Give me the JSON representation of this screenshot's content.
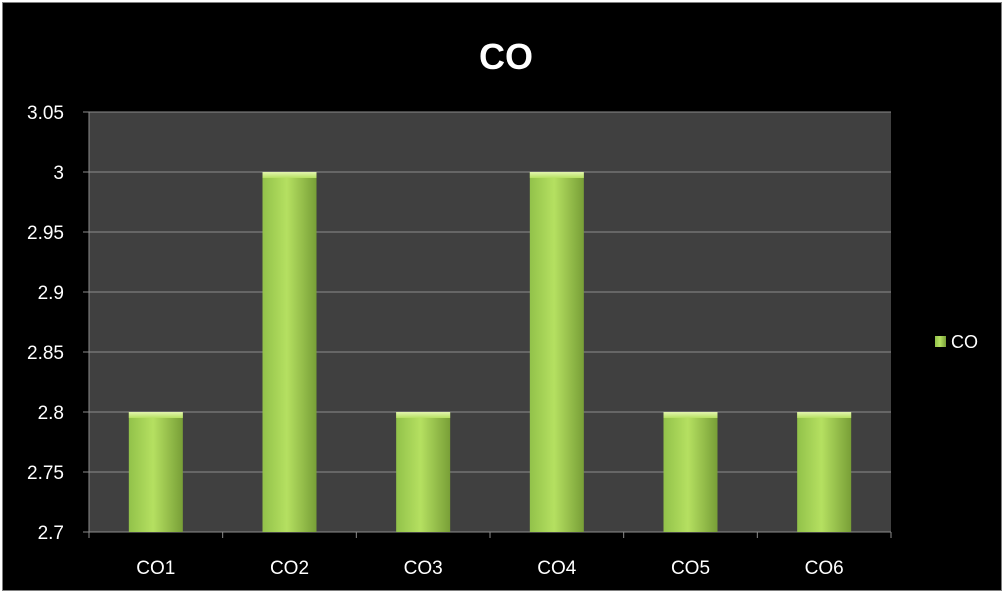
{
  "chart_data": {
    "type": "bar",
    "title": "CO",
    "categories": [
      "CO1",
      "CO2",
      "CO3",
      "CO4",
      "CO5",
      "CO6"
    ],
    "series": [
      {
        "name": "CO",
        "values": [
          2.8,
          3.0,
          2.8,
          3.0,
          2.8,
          2.8
        ]
      }
    ],
    "xlabel": "",
    "ylabel": "",
    "ylim": [
      2.7,
      3.05
    ],
    "yticks": [
      "2.7",
      "2.75",
      "2.8",
      "2.85",
      "2.9",
      "2.95",
      "3",
      "3.05"
    ],
    "grid": true,
    "legend_position": "right",
    "colors": {
      "background": "#000000",
      "plot_area": "#404040",
      "bar_light": "#b5e061",
      "bar_mid": "#92c24a",
      "bar_dark": "#789f37",
      "gridline": "#8c8c8c",
      "text": "#ffffff"
    }
  }
}
